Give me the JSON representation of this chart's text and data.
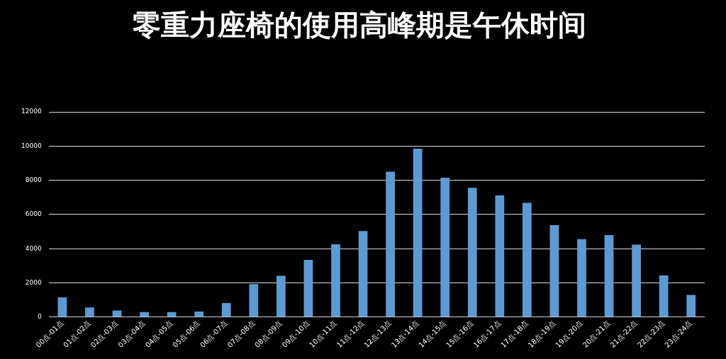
{
  "chart_data": {
    "type": "bar",
    "title": "零重力座椅的使用高峰期是午休时间",
    "categories": [
      "00点-01点",
      "01点-02点",
      "02点-03点",
      "03点-04点",
      "04点-05点",
      "05点-06点",
      "06点-07点",
      "07点-08点",
      "08点-09点",
      "09点-10点",
      "10点-11点",
      "11点-12点",
      "12点-13点",
      "13点-14点",
      "14点-15点",
      "15点-16点",
      "16点-17点",
      "17点-18点",
      "18点-19点",
      "19点-20点",
      "20点-21点",
      "21点-22点",
      "22点-23点",
      "23点-24点"
    ],
    "values": [
      1150,
      560,
      390,
      290,
      290,
      320,
      820,
      1930,
      2410,
      3350,
      4260,
      5030,
      8500,
      9850,
      8150,
      7560,
      7110,
      6680,
      5380,
      4560,
      4800,
      4240,
      2440,
      1300
    ],
    "color": "#5b9bd5",
    "ylim": [
      0,
      12000
    ],
    "yticks": [
      0,
      2000,
      4000,
      6000,
      8000,
      10000,
      12000
    ],
    "grid": "y",
    "legend": false
  }
}
